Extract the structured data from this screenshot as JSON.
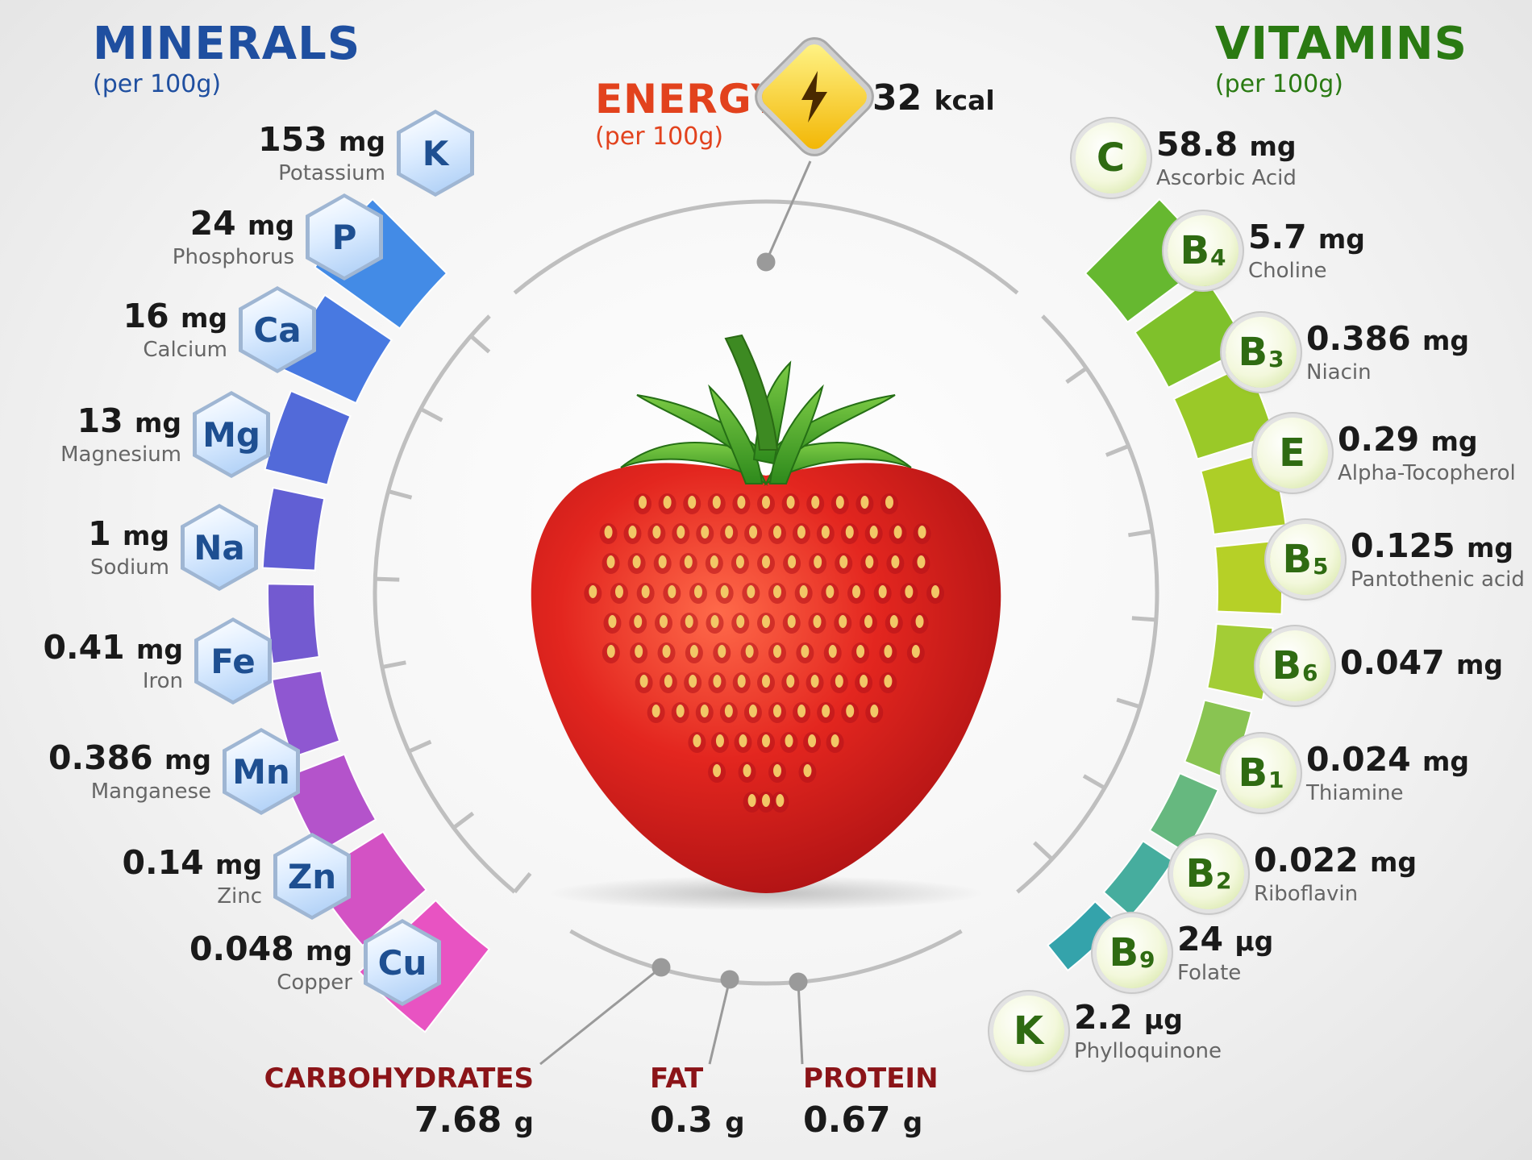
{
  "minerals": {
    "title": "MINERALS",
    "per": "(per 100g)",
    "items": [
      {
        "symbol": "K",
        "amount": "153",
        "unit": "mg",
        "name": "Potassium"
      },
      {
        "symbol": "P",
        "amount": "24",
        "unit": "mg",
        "name": "Phosphorus"
      },
      {
        "symbol": "Ca",
        "amount": "16",
        "unit": "mg",
        "name": "Calcium"
      },
      {
        "symbol": "Mg",
        "amount": "13",
        "unit": "mg",
        "name": "Magnesium"
      },
      {
        "symbol": "Na",
        "amount": "1",
        "unit": "mg",
        "name": "Sodium"
      },
      {
        "symbol": "Fe",
        "amount": "0.41",
        "unit": "mg",
        "name": "Iron"
      },
      {
        "symbol": "Mn",
        "amount": "0.386",
        "unit": "mg",
        "name": "Manganese"
      },
      {
        "symbol": "Zn",
        "amount": "0.14",
        "unit": "mg",
        "name": "Zinc"
      },
      {
        "symbol": "Cu",
        "amount": "0.048",
        "unit": "mg",
        "name": "Copper"
      }
    ]
  },
  "vitamins": {
    "title": "VITAMINS",
    "per": "(per 100g)",
    "items": [
      {
        "letter": "C",
        "sub": "",
        "amount": "58.8",
        "unit": "mg",
        "name": "Ascorbic Acid"
      },
      {
        "letter": "B",
        "sub": "4",
        "amount": "5.7",
        "unit": "mg",
        "name": "Choline"
      },
      {
        "letter": "B",
        "sub": "3",
        "amount": "0.386",
        "unit": "mg",
        "name": "Niacin"
      },
      {
        "letter": "E",
        "sub": "",
        "amount": "0.29",
        "unit": "mg",
        "name": "Alpha-Tocopherol"
      },
      {
        "letter": "B",
        "sub": "5",
        "amount": "0.125",
        "unit": "mg",
        "name": "Pantothenic acid"
      },
      {
        "letter": "B",
        "sub": "6",
        "amount": "0.047",
        "unit": "mg",
        "name": ""
      },
      {
        "letter": "B",
        "sub": "1",
        "amount": "0.024",
        "unit": "mg",
        "name": "Thiamine"
      },
      {
        "letter": "B",
        "sub": "2",
        "amount": "0.022",
        "unit": "mg",
        "name": "Riboflavin"
      },
      {
        "letter": "B",
        "sub": "9",
        "amount": "24",
        "unit": "µg",
        "name": "Folate"
      },
      {
        "letter": "K",
        "sub": "",
        "amount": "2.2",
        "unit": "µg",
        "name": "Phylloquinone"
      }
    ]
  },
  "energy": {
    "label": "ENERGY",
    "per": "(per 100g)",
    "amount": "32",
    "unit": "kcal"
  },
  "macros": [
    {
      "label": "CARBOHYDRATES",
      "amount": "7.68",
      "unit": "g"
    },
    {
      "label": "FAT",
      "amount": "0.3",
      "unit": "g"
    },
    {
      "label": "PROTEIN",
      "amount": "0.67",
      "unit": "g"
    }
  ],
  "colors": {
    "minerals_title": "#1f4fa0",
    "vitamins_title": "#2a7a12",
    "energy_label": "#e2421d",
    "macro_label": "#8b1418"
  }
}
